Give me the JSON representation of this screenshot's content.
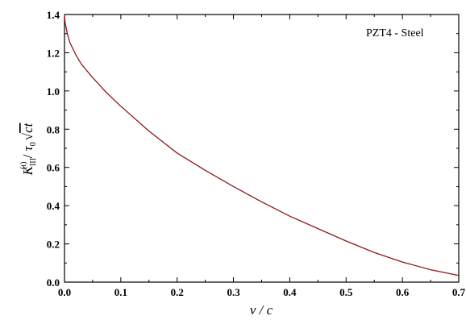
{
  "chart_data": {
    "type": "line",
    "xlabel": "v / c",
    "ylabel": {
      "K": "K",
      "sub": "III",
      "sup": "(t)",
      "slash": " / ",
      "tau": "τ",
      "tau_sub": "0",
      "root": "ct"
    },
    "annotation": "PZT4 - Steel",
    "xlim": [
      0.0,
      0.7
    ],
    "ylim": [
      0.0,
      1.4
    ],
    "xticks": [
      "0.0",
      "0.1",
      "0.2",
      "0.3",
      "0.4",
      "0.5",
      "0.6",
      "0.7"
    ],
    "yticks": [
      "0.0",
      "0.2",
      "0.4",
      "0.6",
      "0.8",
      "1.0",
      "1.2",
      "1.4"
    ],
    "grid": false,
    "series": [
      {
        "color": "#8b1a1a",
        "x": [
          0.0,
          0.001,
          0.005,
          0.01,
          0.02,
          0.03,
          0.05,
          0.075,
          0.1,
          0.15,
          0.2,
          0.25,
          0.3,
          0.35,
          0.4,
          0.45,
          0.5,
          0.55,
          0.6,
          0.65,
          0.7
        ],
        "y": [
          1.4,
          1.36,
          1.3,
          1.25,
          1.19,
          1.14,
          1.07,
          0.99,
          0.92,
          0.79,
          0.675,
          0.585,
          0.5,
          0.42,
          0.345,
          0.28,
          0.215,
          0.155,
          0.105,
          0.065,
          0.035
        ]
      }
    ]
  }
}
